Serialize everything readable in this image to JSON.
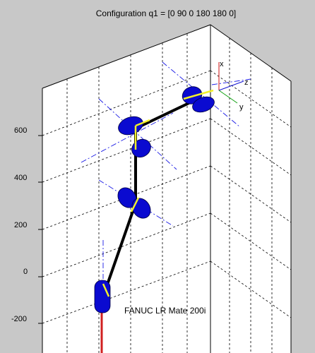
{
  "figure": {
    "title": "Configuration q1 = [0 90 0 180 180 0]",
    "robot_label": "FANUC LR Mate 200i",
    "z_ticks": [
      "600",
      "400",
      "200",
      "0",
      "-200"
    ],
    "frame_labels": {
      "x": "x",
      "y": "y",
      "z": "z"
    }
  },
  "colors": {
    "background": "#c8c8c8",
    "box_face": "#ffffff",
    "grid": "#000000",
    "joint": "#0a0ad0",
    "link": "#000000",
    "axis_highlight": "#f2f02a",
    "joint_axis_line": "#1a1ae6",
    "frame_x": "#d01010",
    "frame_y": "#10a010",
    "frame_z": "#1010d0",
    "base_link": "#d02020"
  }
}
